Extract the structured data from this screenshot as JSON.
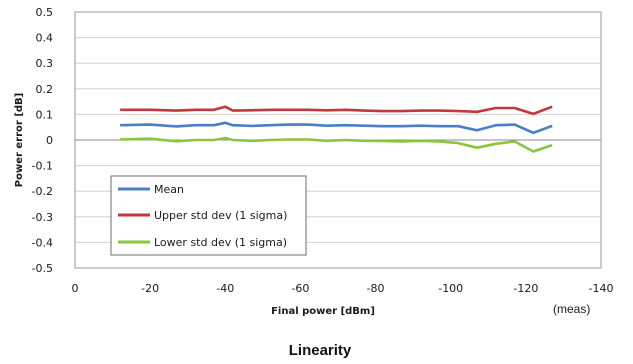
{
  "chart_data": {
    "type": "line",
    "title": "",
    "caption": "Linearity",
    "xlabel": "Final power [dBm]",
    "ylabel": "Power error [dB]",
    "note": "(meas)",
    "xlim": [
      0,
      -140
    ],
    "ylim": [
      -0.5,
      0.5
    ],
    "x_ticks": [
      0,
      -20,
      -40,
      -60,
      -80,
      -100,
      -120,
      -140
    ],
    "x_tick_labels": [
      "0",
      "-20",
      "-40",
      "-60",
      "-80",
      "-100",
      "-120",
      "-140"
    ],
    "y_ticks": [
      0.5,
      0.4,
      0.3,
      0.2,
      0.1,
      0,
      -0.1,
      -0.2,
      -0.3,
      -0.4,
      -0.5
    ],
    "y_tick_labels": [
      "0.5",
      "0.4",
      "0.3",
      "0.2",
      "0.1",
      "0",
      "-0.1",
      "-0.2",
      "-0.3",
      "-0.4",
      "-0.5"
    ],
    "grid": "horizontal",
    "legend_position": "bottom-left",
    "series": [
      {
        "name": "Mean",
        "color": "#4a7ec9",
        "points": [
          [
            -12,
            0.058
          ],
          [
            -20,
            0.06
          ],
          [
            -27,
            0.053
          ],
          [
            -32,
            0.058
          ],
          [
            -37,
            0.058
          ],
          [
            -40,
            0.067
          ],
          [
            -42,
            0.058
          ],
          [
            -47,
            0.055
          ],
          [
            -52,
            0.058
          ],
          [
            -57,
            0.06
          ],
          [
            -62,
            0.06
          ],
          [
            -67,
            0.056
          ],
          [
            -72,
            0.058
          ],
          [
            -77,
            0.056
          ],
          [
            -82,
            0.054
          ],
          [
            -87,
            0.054
          ],
          [
            -92,
            0.056
          ],
          [
            -97,
            0.054
          ],
          [
            -102,
            0.054
          ],
          [
            -107,
            0.038
          ],
          [
            -112,
            0.058
          ],
          [
            -117,
            0.06
          ],
          [
            -122,
            0.028
          ],
          [
            -127,
            0.055
          ]
        ]
      },
      {
        "name": "Upper std dev (1 sigma)",
        "color": "#c0393b",
        "points": [
          [
            -12,
            0.118
          ],
          [
            -20,
            0.118
          ],
          [
            -27,
            0.115
          ],
          [
            -32,
            0.118
          ],
          [
            -37,
            0.118
          ],
          [
            -40,
            0.13
          ],
          [
            -42,
            0.115
          ],
          [
            -47,
            0.116
          ],
          [
            -52,
            0.118
          ],
          [
            -57,
            0.118
          ],
          [
            -62,
            0.118
          ],
          [
            -67,
            0.116
          ],
          [
            -72,
            0.118
          ],
          [
            -77,
            0.115
          ],
          [
            -82,
            0.113
          ],
          [
            -87,
            0.113
          ],
          [
            -92,
            0.115
          ],
          [
            -97,
            0.115
          ],
          [
            -102,
            0.113
          ],
          [
            -107,
            0.11
          ],
          [
            -112,
            0.125
          ],
          [
            -117,
            0.125
          ],
          [
            -122,
            0.102
          ],
          [
            -127,
            0.13
          ]
        ]
      },
      {
        "name": "Lower std dev (1 sigma)",
        "color": "#8cc43f",
        "points": [
          [
            -12,
            0.002
          ],
          [
            -20,
            0.005
          ],
          [
            -27,
            -0.005
          ],
          [
            -32,
            0.0
          ],
          [
            -37,
            0.0
          ],
          [
            -40,
            0.008
          ],
          [
            -42,
            0.0
          ],
          [
            -47,
            -0.003
          ],
          [
            -52,
            0.0
          ],
          [
            -57,
            0.002
          ],
          [
            -62,
            0.002
          ],
          [
            -67,
            -0.003
          ],
          [
            -72,
            0.0
          ],
          [
            -77,
            -0.003
          ],
          [
            -82,
            -0.004
          ],
          [
            -87,
            -0.006
          ],
          [
            -92,
            -0.003
          ],
          [
            -97,
            -0.006
          ],
          [
            -102,
            -0.012
          ],
          [
            -107,
            -0.03
          ],
          [
            -112,
            -0.015
          ],
          [
            -117,
            -0.006
          ],
          [
            -122,
            -0.045
          ],
          [
            -127,
            -0.02
          ]
        ]
      }
    ]
  }
}
